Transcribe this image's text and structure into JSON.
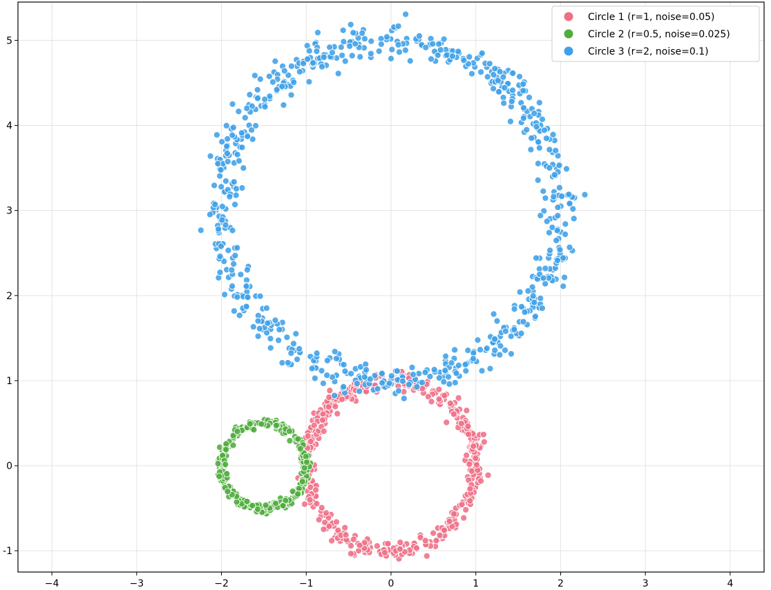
{
  "chart_data": {
    "type": "scatter",
    "title": "",
    "xlabel": "",
    "ylabel": "",
    "xlim": [
      -4.4,
      4.4
    ],
    "ylim": [
      -1.25,
      5.45
    ],
    "xticks": [
      -4,
      -3,
      -2,
      -1,
      0,
      1,
      2,
      3,
      4
    ],
    "yticks": [
      -1,
      0,
      1,
      2,
      3,
      4,
      5
    ],
    "xtick_labels": [
      "−4",
      "−3",
      "−2",
      "−1",
      "0",
      "1",
      "2",
      "3",
      "4"
    ],
    "ytick_labels": [
      "-1",
      "0",
      "1",
      "2",
      "3",
      "4",
      "5"
    ],
    "grid": true,
    "legend_position": "top-right",
    "series": [
      {
        "name": "Circle 1 (r=1, noise=0.05)",
        "color": "#ef6f86",
        "center": [
          0,
          0
        ],
        "radius": 1,
        "noise": 0.05,
        "n_points": 500
      },
      {
        "name": "Circle 2 (r=0.5, noise=0.025)",
        "color": "#4fad3c",
        "center": [
          -1.5,
          0
        ],
        "radius": 0.5,
        "noise": 0.025,
        "n_points": 300
      },
      {
        "name": "Circle 3 (r=2, noise=0.1)",
        "color": "#3fa0e8",
        "center": [
          0,
          3
        ],
        "radius": 2,
        "noise": 0.1,
        "n_points": 700
      }
    ]
  }
}
